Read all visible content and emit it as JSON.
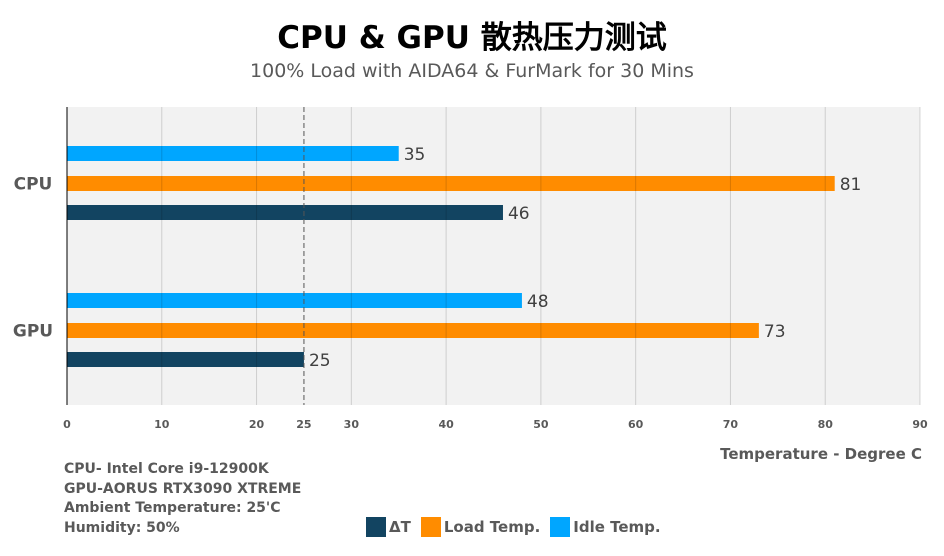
{
  "chart_data": {
    "type": "bar",
    "orientation": "horizontal",
    "title": "CPU & GPU 散热压力测试",
    "subtitle": "100% Load with AIDA64 & FurMark for 30 Mins",
    "xlabel": "Temperature - Degree C",
    "categories": [
      "CPU",
      "GPU"
    ],
    "series": [
      {
        "name": "Idle Temp.",
        "values": [
          35,
          48
        ],
        "color": "#00a6ff"
      },
      {
        "name": "Load Temp.",
        "values": [
          81,
          73
        ],
        "color": "#ff8c00"
      },
      {
        "name": "ΔT",
        "values": [
          46,
          25
        ],
        "color": "#124461"
      }
    ],
    "xlim": [
      0,
      90
    ],
    "xticks": [
      0,
      10,
      20,
      25,
      30,
      40,
      50,
      60,
      70,
      80,
      90
    ],
    "reference_line": 25,
    "grid": true,
    "legend_position": "bottom",
    "legend_order": [
      "ΔT",
      "Load Temp.",
      "Idle Temp."
    ],
    "plot_background": "#f2f2f2"
  },
  "notes": [
    "CPU- Intel Core i9-12900K",
    "GPU-AORUS RTX3090 XTREME",
    "Ambient Temperature: 25'C",
    "Humidity: 50%"
  ]
}
